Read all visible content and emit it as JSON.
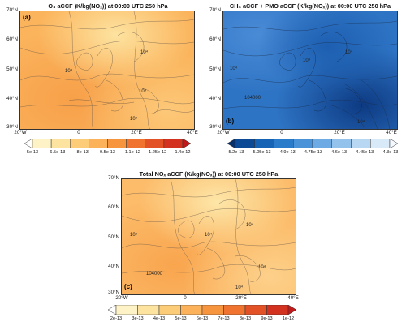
{
  "panels": {
    "a": {
      "title": "O₃ aCCF (K/kg(NOₓ)) at 00:00 UTC 250 hPa",
      "label": "(a)",
      "lat_ticks": [
        "70°N",
        "60°N",
        "50°N",
        "40°N",
        "30°N"
      ],
      "lon_ticks": [
        "20°W",
        "0",
        "20°E",
        "40°E"
      ],
      "contour_labels": [
        "10⁴",
        "10⁴",
        "10⁴",
        "10⁴"
      ],
      "colorbar_ticks": [
        "5e-13",
        "6.5e-13",
        "8e-13",
        "9.5e-13",
        "1.1e-12",
        "1.25e-12",
        "1.4e-12"
      ],
      "colors": [
        "#ffffff",
        "#fdf3c6",
        "#fde3a0",
        "#fdcc78",
        "#fbb25a",
        "#f7953f",
        "#f07430",
        "#e35227",
        "#d2321f",
        "#c21a1a"
      ]
    },
    "b": {
      "title": "CH₄ aCCF + PMO aCCF (K/kg(NOₓ)) at 00:00 UTC 250 hPa",
      "label": "(b)",
      "lat_ticks": [
        "70°N",
        "60°N",
        "50°N",
        "40°N",
        "30°N"
      ],
      "lon_ticks": [
        "20°W",
        "0",
        "20°E",
        "40°E"
      ],
      "contour_labels": [
        "10⁴",
        "10⁴",
        "104000",
        "10⁴",
        "10⁴"
      ],
      "colorbar_ticks": [
        "-5.2e-13",
        "-5.05e-13",
        "-4.9e-13",
        "-4.75e-13",
        "-4.6e-13",
        "-4.45e-13",
        "-4.3e-13"
      ],
      "colors": [
        "#08306b",
        "#0d4a95",
        "#1663b5",
        "#2b7bcb",
        "#4a93d8",
        "#6eaae3",
        "#93c2ec",
        "#b8d7f3",
        "#d8e9f8",
        "#f4f9ff"
      ]
    },
    "c": {
      "title": "Total NOₓ aCCF (K/kg(NOₓ)) at 00:00 UTC 250 hPa",
      "label": "(c)",
      "lat_ticks": [
        "70°N",
        "60°N",
        "50°N",
        "40°N",
        "30°N"
      ],
      "lon_ticks": [
        "20°W",
        "0",
        "20°E",
        "40°E"
      ],
      "contour_labels": [
        "10⁴",
        "10⁴",
        "10⁴",
        "104000",
        "10⁴",
        "10⁴"
      ],
      "colorbar_ticks": [
        "2e-13",
        "3e-13",
        "4e-13",
        "5e-13",
        "6e-13",
        "7e-13",
        "8e-13",
        "9e-13",
        "1e-12"
      ],
      "colors": [
        "#ffffff",
        "#fdf3c6",
        "#fde3a0",
        "#fdcc78",
        "#fbb25a",
        "#f7953f",
        "#f07430",
        "#e35227",
        "#d2321f",
        "#c21a1a"
      ]
    }
  }
}
